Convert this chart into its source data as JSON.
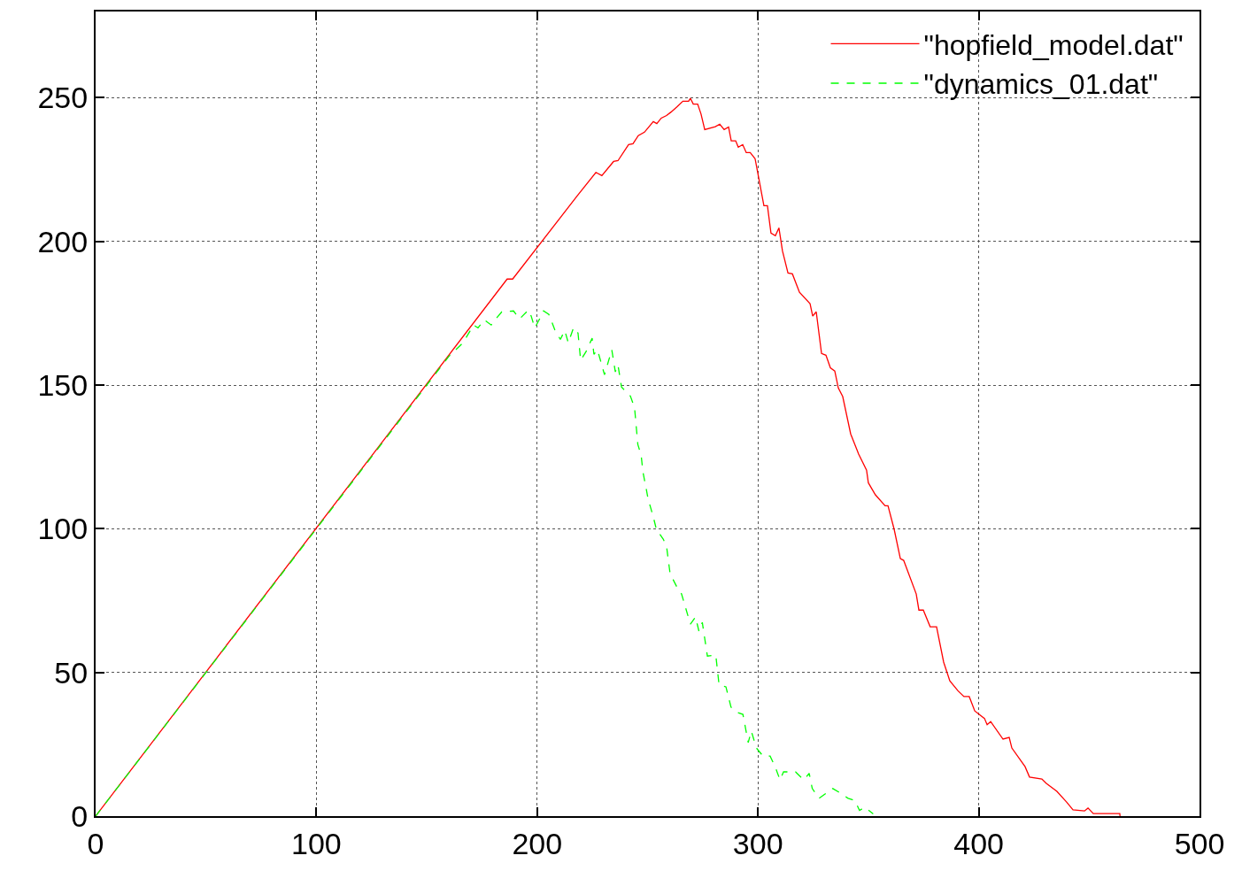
{
  "chart_data": {
    "type": "line",
    "xlim": [
      0,
      500
    ],
    "xticks": [
      0,
      100,
      200,
      300,
      400,
      500
    ],
    "ylim": [
      0,
      280
    ],
    "yticks": [
      0,
      50,
      100,
      150,
      200,
      250
    ],
    "grid": true,
    "legend": "top right",
    "marker": "none",
    "series": [
      {
        "name": "\"hopfield_model.dat\"",
        "color": "#ff0000",
        "line_style": "solid",
        "x": [
          0,
          186.4,
          188.9,
          218.1,
          226.6,
          229.3,
          234.6,
          236.6,
          241.4,
          243.4,
          245.8,
          248.6,
          252.6,
          254.2,
          256.2,
          258.6,
          260.6,
          263.4,
          266,
          268.6,
          269.4,
          270.7,
          272.7,
          274.2,
          275.9,
          280.7,
          282.7,
          284.7,
          286.7,
          287.9,
          289.9,
          291.1,
          293.1,
          294.7,
          296.5,
          298.7,
          300.3,
          302.7,
          304.3,
          305.9,
          307.9,
          309.5,
          311.1,
          313.6,
          315.6,
          318.8,
          323.6,
          324.8,
          326.4,
          328.8,
          330.8,
          332.8,
          334.8,
          336.4,
          338.4,
          342,
          345.6,
          349.2,
          350,
          353.2,
          357.6,
          358.9,
          361.7,
          364.5,
          366,
          371.7,
          372.9,
          374.9,
          378,
          380.9,
          384.1,
          386.9,
          390.5,
          393.3,
          395.7,
          398.2,
          402.6,
          403.8,
          405.4,
          411,
          413.8,
          415,
          421,
          423,
          428.6,
          430.6,
          435.4,
          439.8,
          442.7,
          447.9,
          449.5,
          451.9,
          463.9,
          464
        ],
        "values": [
          0,
          186.9,
          186.9,
          215.8,
          224,
          222.9,
          227.8,
          228.1,
          233.7,
          234,
          236.8,
          238,
          241.7,
          241,
          242.9,
          243.8,
          245,
          246.9,
          248.8,
          248.8,
          249.8,
          247.8,
          247.8,
          244.4,
          238.9,
          239.9,
          240.8,
          238.9,
          239.8,
          235,
          235,
          232.8,
          233.7,
          230.9,
          230.9,
          228.8,
          222.3,
          212.4,
          212.4,
          202.9,
          202,
          204.7,
          196.7,
          189,
          188.7,
          182.3,
          178.3,
          174,
          175.5,
          161,
          160.4,
          156,
          154.9,
          149,
          146,
          133,
          126,
          120.4,
          116,
          111.8,
          108,
          108,
          99.8,
          89.6,
          89,
          77.3,
          71.7,
          71.7,
          65.9,
          65.9,
          53.6,
          47.1,
          43.7,
          41.6,
          41.6,
          36.6,
          34,
          31.8,
          32.9,
          26.8,
          27.4,
          23.7,
          17.2,
          13.6,
          12.9,
          11.4,
          8.6,
          4.9,
          2.2,
          1.8,
          2.8,
          0.9,
          0.9,
          0
        ]
      },
      {
        "name": "\"dynamics_01.dat\"",
        "color": "#00ff00",
        "line_style": "dashed",
        "x": [
          0,
          160,
          166.4,
          171.2,
          173.2,
          176,
          179.2,
          181.2,
          184,
          189.3,
          192,
          196,
          197.3,
          198.9,
          200.5,
          202.9,
          205.3,
          208.1,
          210.5,
          212.5,
          214.1,
          216.5,
          218.5,
          219.7,
          222.1,
          224.9,
          225.7,
          227.3,
          230.5,
          233.8,
          235.4,
          236.6,
          238.2,
          242.2,
          244.1,
          245.6,
          247.1,
          247.9,
          249.4,
          250.2,
          252.5,
          254,
          257.1,
          258.6,
          260.2,
          263.3,
          265.4,
          269.4,
          271.7,
          273.3,
          274.8,
          277.1,
          280.9,
          282.4,
          285.5,
          287.8,
          290.9,
          293.2,
          295.6,
          297,
          299.3,
          302.3,
          305.5,
          307.8,
          310,
          311.6,
          317,
          320.8,
          323.2,
          324.6,
          327.7,
          333.9,
          337.6,
          340.8,
          343.8,
          346,
          348.4,
          352.2
        ],
        "values": [
          0,
          160,
          164.7,
          170.9,
          169.9,
          172.7,
          170.9,
          173,
          175.5,
          175.8,
          173,
          176.1,
          174,
          169.9,
          172.1,
          175.8,
          174.6,
          169,
          165.9,
          169,
          164.7,
          170,
          168.1,
          158.6,
          161.6,
          166.3,
          160.7,
          162.3,
          153.6,
          162.3,
          154.6,
          157,
          149.3,
          146.2,
          142.2,
          129.3,
          125.6,
          119.8,
          113.9,
          110.5,
          104.4,
          99.8,
          96.4,
          93.9,
          84.4,
          79.7,
          77.3,
          66.8,
          69.3,
          64.3,
          67.4,
          55.7,
          56.1,
          45.6,
          45,
          37.9,
          36,
          35.4,
          25.6,
          29.6,
          23.7,
          20.9,
          20.9,
          17.2,
          12.6,
          15.4,
          15.4,
          12.6,
          14.9,
          9.6,
          6.2,
          9.6,
          7.9,
          6.2,
          5.5,
          2,
          3.1,
          0.8
        ]
      }
    ]
  }
}
